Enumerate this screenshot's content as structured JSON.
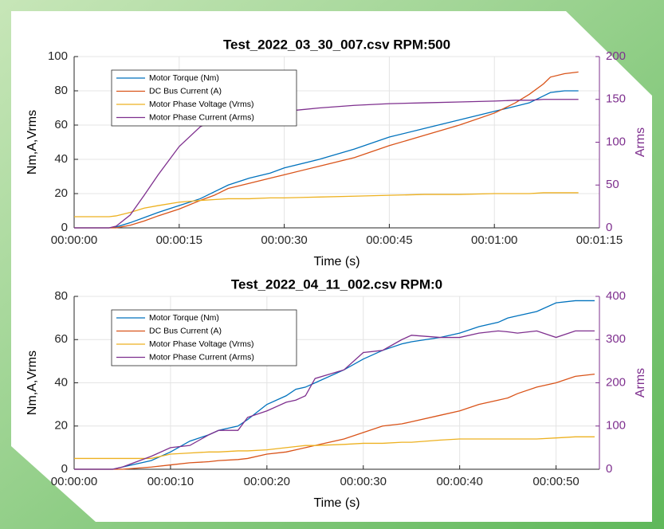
{
  "chart_data": [
    {
      "type": "line",
      "title": "Test_2022_03_30_007.csv RPM:500",
      "xlabel": "Time (s)",
      "ylabel": "Nm,A,Vrms",
      "y2label": "Arms",
      "x": [
        0,
        3,
        5,
        6,
        8,
        10,
        12,
        15,
        18,
        20,
        22,
        25,
        28,
        30,
        35,
        40,
        45,
        50,
        55,
        60,
        63,
        65,
        67,
        68,
        70,
        72
      ],
      "xlim": [
        0,
        75
      ],
      "xticks": [
        {
          "value": 0,
          "label": "00:00:00"
        },
        {
          "value": 15,
          "label": "00:00:15"
        },
        {
          "value": 30,
          "label": "00:00:30"
        },
        {
          "value": 45,
          "label": "00:00:45"
        },
        {
          "value": 60,
          "label": "00:01:00"
        },
        {
          "value": 75,
          "label": "00:01:15"
        }
      ],
      "ylim": [
        0,
        100
      ],
      "yticks": [
        0,
        20,
        40,
        60,
        80,
        100
      ],
      "y2lim": [
        0,
        200
      ],
      "y2ticks": [
        0,
        50,
        100,
        150,
        200
      ],
      "grid": true,
      "legend": "upper left",
      "series": [
        {
          "name": "Motor Torque (Nm)",
          "color": "#0072BD",
          "values": [
            0,
            0,
            0,
            0.5,
            3,
            6,
            9,
            13,
            17,
            21,
            25,
            29,
            32,
            35,
            40,
            46,
            53,
            58,
            63,
            68,
            71,
            73,
            77,
            79,
            80,
            80
          ]
        },
        {
          "name": "DC Bus Current (A)",
          "color": "#D95319",
          "values": [
            0,
            0,
            0,
            0,
            1.5,
            4,
            7,
            11,
            16,
            19,
            23,
            26,
            29,
            31,
            36,
            41,
            48,
            54,
            60,
            67,
            73,
            78,
            84,
            88,
            90,
            91
          ]
        },
        {
          "name": "Motor Phase Voltage (Vrms)",
          "color": "#EDB120",
          "values": [
            6.5,
            6.5,
            6.5,
            7,
            9,
            11.5,
            13,
            15,
            16,
            16.5,
            17,
            17,
            17.5,
            17.5,
            18,
            18.5,
            19,
            19.5,
            19.5,
            20,
            20,
            20,
            20.5,
            20.5,
            20.5,
            20.5
          ]
        },
        {
          "name": "Motor Phase Current (Arms)",
          "color": "#7E2F8E",
          "axis": "y2",
          "values": [
            0,
            0,
            0,
            2,
            15,
            38,
            62,
            95,
            118,
            126,
            130,
            132,
            134,
            136,
            140,
            143,
            145,
            146,
            147,
            148,
            149,
            149,
            150,
            150,
            150,
            150
          ]
        }
      ]
    },
    {
      "type": "line",
      "title": "Test_2022_04_11_002.csv RPM:0",
      "xlabel": "Time (s)",
      "ylabel": "Nm,A,Vrms",
      "y2label": "Arms",
      "x": [
        0,
        4,
        5,
        8,
        10,
        12,
        14,
        15,
        17,
        18,
        20,
        22,
        23,
        24,
        25,
        28,
        30,
        32,
        34,
        35,
        38,
        40,
        42,
        44,
        45,
        46,
        48,
        50,
        52,
        54
      ],
      "xlim": [
        0,
        54.5
      ],
      "xticks": [
        {
          "value": 0,
          "label": "00:00:00"
        },
        {
          "value": 10,
          "label": "00:00:10"
        },
        {
          "value": 20,
          "label": "00:00:20"
        },
        {
          "value": 30,
          "label": "00:00:30"
        },
        {
          "value": 40,
          "label": "00:00:40"
        },
        {
          "value": 50,
          "label": "00:00:50"
        }
      ],
      "ylim": [
        0,
        80
      ],
      "yticks": [
        0,
        20,
        40,
        60,
        80
      ],
      "y2lim": [
        0,
        400
      ],
      "y2ticks": [
        0,
        100,
        200,
        300,
        400
      ],
      "grid": true,
      "legend": "upper left",
      "series": [
        {
          "name": "Motor Torque (Nm)",
          "color": "#0072BD",
          "values": [
            0,
            0,
            1,
            4,
            8,
            13,
            16,
            18,
            20,
            23,
            30,
            34,
            37,
            38,
            40,
            46,
            51,
            55,
            58,
            59,
            61,
            63,
            66,
            68,
            70,
            71,
            73,
            77,
            78,
            78
          ]
        },
        {
          "name": "DC Bus Current (A)",
          "color": "#D95319",
          "values": [
            0,
            0,
            0,
            1,
            2,
            3,
            3.5,
            4,
            4.5,
            5,
            7,
            8,
            9,
            10,
            11,
            14,
            17,
            20,
            21,
            22,
            25,
            27,
            30,
            32,
            33,
            35,
            38,
            40,
            43,
            44
          ]
        },
        {
          "name": "Motor Phase Voltage (Vrms)",
          "color": "#EDB120",
          "values": [
            5,
            5,
            5,
            5,
            7,
            7.5,
            8,
            8,
            8.5,
            8.5,
            9,
            10,
            10.5,
            11,
            11,
            11.5,
            12,
            12,
            12.5,
            12.5,
            13.5,
            14,
            14,
            14,
            14,
            14,
            14,
            14.5,
            15,
            15
          ]
        },
        {
          "name": "Motor Phase Current (Arms)",
          "color": "#7E2F8E",
          "axis": "y2",
          "values": [
            0,
            0,
            5,
            30,
            50,
            55,
            80,
            90,
            90,
            120,
            135,
            155,
            160,
            170,
            210,
            230,
            270,
            275,
            300,
            310,
            305,
            305,
            315,
            320,
            318,
            315,
            320,
            305,
            320,
            320
          ]
        }
      ]
    }
  ]
}
